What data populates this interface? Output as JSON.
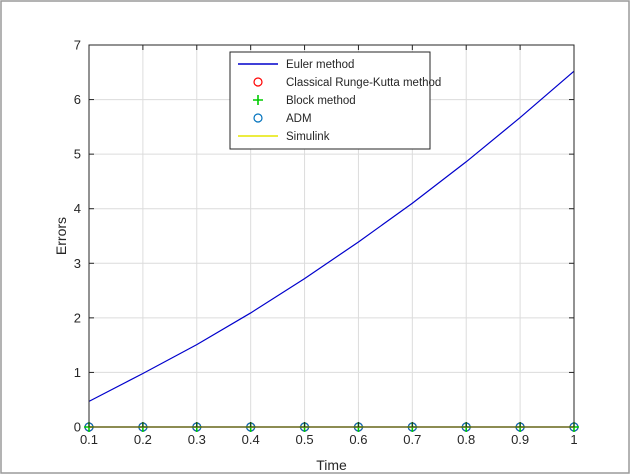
{
  "chart_data": {
    "type": "line",
    "xlabel": "Time",
    "ylabel": "Errors",
    "xlim": [
      0.1,
      1
    ],
    "ylim": [
      0,
      7
    ],
    "xticks": [
      0.1,
      0.2,
      0.3,
      0.4,
      0.5,
      0.6,
      0.7,
      0.8,
      0.9,
      1
    ],
    "xtick_labels": [
      "0.1",
      "0.2",
      "0.3",
      "0.4",
      "0.5",
      "0.6",
      "0.7",
      "0.8",
      "0.9",
      "1"
    ],
    "yticks": [
      0,
      1,
      2,
      3,
      4,
      5,
      6,
      7
    ],
    "ytick_labels": [
      "0",
      "1",
      "2",
      "3",
      "4",
      "5",
      "6",
      "7"
    ],
    "grid": true,
    "legend_position": "top-center",
    "x": [
      0.1,
      0.2,
      0.3,
      0.4,
      0.5,
      0.6,
      0.7,
      0.8,
      0.9,
      1
    ],
    "series": [
      {
        "name": "Euler method",
        "marker": "line",
        "color": "#0000cc",
        "values": [
          0.47,
          0.98,
          1.51,
          2.09,
          2.72,
          3.39,
          4.1,
          4.86,
          5.67,
          6.52
        ]
      },
      {
        "name": "Classical Runge-Kutta method",
        "marker": "circle",
        "color": "#ff0000",
        "values": [
          0,
          0,
          0,
          0,
          0,
          0,
          0,
          0,
          0,
          0
        ]
      },
      {
        "name": "Block method",
        "marker": "plus",
        "color": "#00cc00",
        "values": [
          0,
          0,
          0,
          0,
          0,
          0,
          0,
          0,
          0,
          0
        ]
      },
      {
        "name": "ADM",
        "marker": "circle",
        "color": "#0072bd",
        "values": [
          0,
          0,
          0,
          0,
          0,
          0,
          0,
          0,
          0,
          0
        ]
      },
      {
        "name": "Simulink",
        "marker": "line",
        "color": "#e6e600",
        "values": [
          0,
          0,
          0,
          0,
          0,
          0,
          0,
          0,
          0,
          0
        ]
      }
    ]
  }
}
